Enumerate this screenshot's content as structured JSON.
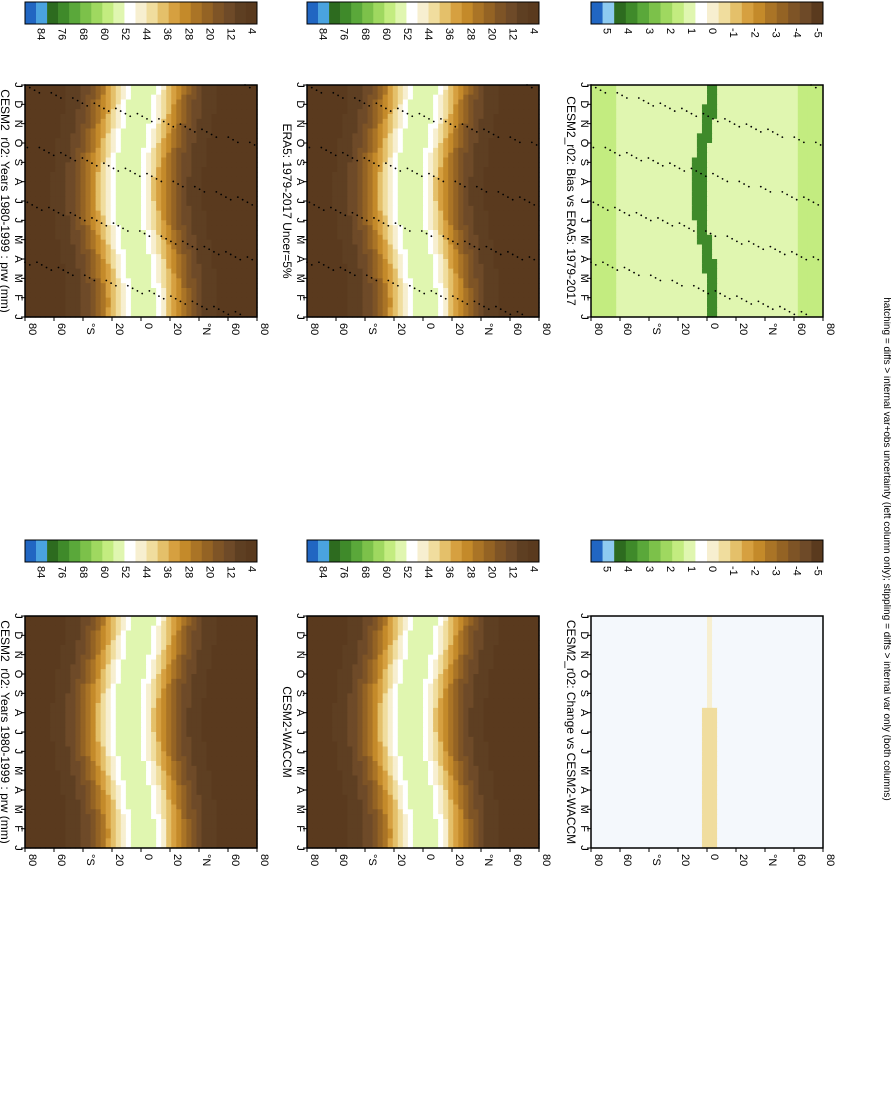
{
  "panels": [
    {
      "id": "p1",
      "title": "CESM2_r02: Years 1980-1999 : prw (mm)",
      "kind": "clim",
      "stipple": true
    },
    {
      "id": "p2",
      "title": "ERA5: 1979-2017 Uncer=5%",
      "kind": "clim",
      "stipple": true
    },
    {
      "id": "p3",
      "title": "CESM2_r02: Bias vs ERA5: 1979-2017",
      "kind": "diff",
      "stipple": true
    },
    {
      "id": "p4",
      "title": "CESM2_r02: Years 1980-1999 : prw (mm)",
      "kind": "clim",
      "stipple": false
    },
    {
      "id": "p5",
      "title": "CESM2-WACCM",
      "kind": "clim",
      "stipple": false
    },
    {
      "id": "p6",
      "title": "CESM2_r02: Change vs CESM2-WACCM",
      "kind": "diffsmall",
      "stipple": false
    }
  ],
  "months": [
    "J",
    "F",
    "M",
    "A",
    "M",
    "J",
    "J",
    "A",
    "S",
    "O",
    "N",
    "D",
    "J"
  ],
  "lat_ticks": [
    "80",
    "60",
    "°N",
    "20",
    "0",
    "20",
    "°S",
    "60",
    "80"
  ],
  "clim_cbar": {
    "labels": [
      "84",
      "76",
      "68",
      "60",
      "52",
      "44",
      "36",
      "28",
      "20",
      "12",
      "4"
    ],
    "colors": [
      "#2166c2",
      "#4aa3e0",
      "#2d6b1f",
      "#3f8a2a",
      "#5aa83a",
      "#7cc14a",
      "#9fd860",
      "#c3ec80",
      "#e0f6b0",
      "#ffffff",
      "#f7efd0",
      "#f0dd9e",
      "#e4c06a",
      "#d6a040",
      "#c48a2a",
      "#aa7426",
      "#946324",
      "#7e5426",
      "#6e4a28",
      "#5e3f22",
      "#5a3a1e"
    ]
  },
  "diff_cbar": {
    "labels": [
      "5",
      "4",
      "3",
      "2",
      "1",
      "0",
      "-1",
      "-2",
      "-3",
      "-4",
      "-5"
    ],
    "colors": [
      "#2166c2",
      "#8ecbf0",
      "#2d6b1f",
      "#3f8a2a",
      "#5aa83a",
      "#7cc14a",
      "#9fd860",
      "#c3ec80",
      "#e0f6b0",
      "#ffffff",
      "#f7efd0",
      "#f0dd9e",
      "#e4c06a",
      "#d6a040",
      "#c48a2a",
      "#aa7426",
      "#946324",
      "#7e5426",
      "#6e4a28",
      "#5a3a1e"
    ]
  },
  "footnote": "hatching = diffs > internal var+obs uncertainty (left column only); stippling = diffs > internal var only (both columns)",
  "chart_data": [
    {
      "type": "heatmap",
      "title": "CESM2_r02: Years 1980-1999 : prw (mm)",
      "x": [
        "J",
        "F",
        "M",
        "A",
        "M",
        "J",
        "J",
        "A",
        "S",
        "O",
        "N",
        "D",
        "J"
      ],
      "y": [
        "80",
        "60",
        "°N",
        "20",
        "0",
        "20",
        "°S",
        "60",
        "80"
      ],
      "colorbar": [
        "84",
        "76",
        "68",
        "60",
        "52",
        "44",
        "36",
        "28",
        "20",
        "12",
        "4"
      ]
    },
    {
      "type": "heatmap",
      "title": "ERA5: 1979-2017 Uncer=5%",
      "x": [
        "J",
        "F",
        "M",
        "A",
        "M",
        "J",
        "J",
        "A",
        "S",
        "O",
        "N",
        "D",
        "J"
      ],
      "y": [
        "80",
        "60",
        "°N",
        "20",
        "0",
        "20",
        "°S",
        "60",
        "80"
      ],
      "colorbar": [
        "84",
        "76",
        "68",
        "60",
        "52",
        "44",
        "36",
        "28",
        "20",
        "12",
        "4"
      ]
    },
    {
      "type": "heatmap",
      "title": "CESM2_r02: Bias vs ERA5: 1979-2017",
      "x": [
        "J",
        "F",
        "M",
        "A",
        "M",
        "J",
        "J",
        "A",
        "S",
        "O",
        "N",
        "D",
        "J"
      ],
      "y": [
        "80",
        "60",
        "°N",
        "20",
        "0",
        "20",
        "°S",
        "60",
        "80"
      ],
      "colorbar": [
        "5",
        "4",
        "3",
        "2",
        "1",
        "0",
        "-1",
        "-2",
        "-3",
        "-4",
        "-5"
      ]
    },
    {
      "type": "heatmap",
      "title": "CESM2_r02: Years 1980-1999 : prw (mm)",
      "x": [
        "J",
        "F",
        "M",
        "A",
        "M",
        "J",
        "J",
        "A",
        "S",
        "O",
        "N",
        "D",
        "J"
      ],
      "y": [
        "80",
        "60",
        "°N",
        "20",
        "0",
        "20",
        "°S",
        "60",
        "80"
      ],
      "colorbar": [
        "84",
        "76",
        "68",
        "60",
        "52",
        "44",
        "36",
        "28",
        "20",
        "12",
        "4"
      ]
    },
    {
      "type": "heatmap",
      "title": "CESM2-WACCM",
      "x": [
        "J",
        "F",
        "M",
        "A",
        "M",
        "J",
        "J",
        "A",
        "S",
        "O",
        "N",
        "D",
        "J"
      ],
      "y": [
        "80",
        "60",
        "°N",
        "20",
        "0",
        "20",
        "°S",
        "60",
        "80"
      ],
      "colorbar": [
        "84",
        "76",
        "68",
        "60",
        "52",
        "44",
        "36",
        "28",
        "20",
        "12",
        "4"
      ]
    },
    {
      "type": "heatmap",
      "title": "CESM2_r02: Change vs CESM2-WACCM",
      "x": [
        "J",
        "F",
        "M",
        "A",
        "M",
        "J",
        "J",
        "A",
        "S",
        "O",
        "N",
        "D",
        "J"
      ],
      "y": [
        "80",
        "60",
        "°N",
        "20",
        "0",
        "20",
        "°S",
        "60",
        "80"
      ],
      "colorbar": [
        "5",
        "4",
        "3",
        "2",
        "1",
        "0",
        "-1",
        "-2",
        "-3",
        "-4",
        "-5"
      ]
    }
  ]
}
